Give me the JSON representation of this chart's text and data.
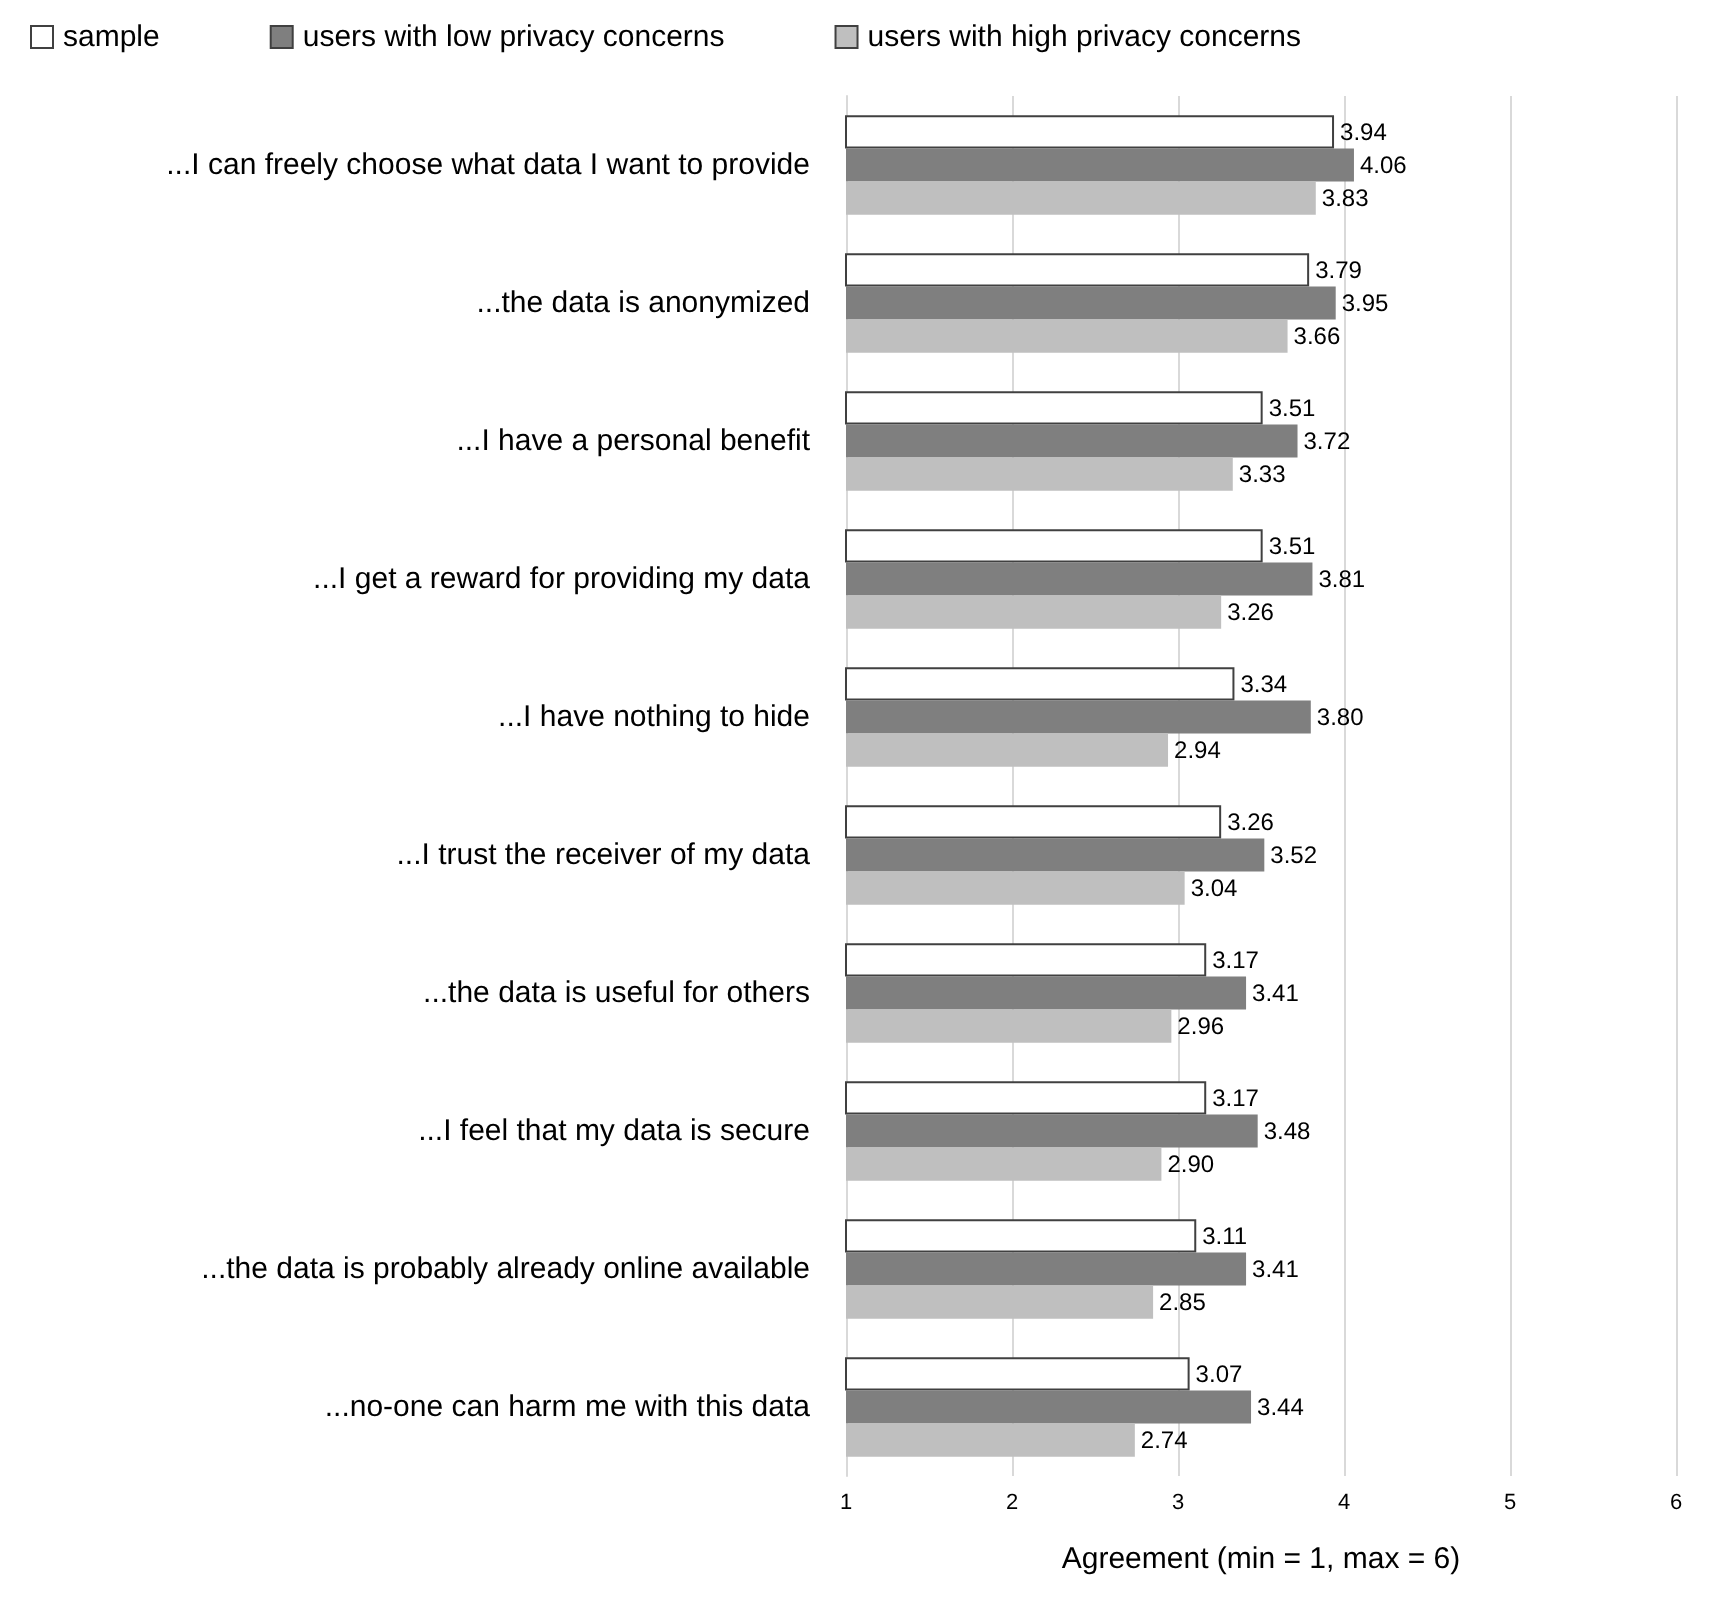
{
  "chart_data": {
    "type": "bar",
    "orientation": "horizontal",
    "xlabel": "Agreement (min = 1, max = 6)",
    "categories": [
      "...I can freely choose what data I want to provide",
      "...the data is anonymized",
      "...I have a personal benefit",
      "...I get a reward for providing my data",
      "...I have nothing to hide",
      "...I trust the receiver of my data",
      "...the data is useful for others",
      "...I feel that my data is secure",
      "...the data is probably already online available",
      "...no-one can harm me with this data"
    ],
    "series": [
      {
        "name": "sample",
        "color": "#ffffff",
        "values": [
          3.94,
          3.79,
          3.51,
          3.51,
          3.34,
          3.26,
          3.17,
          3.17,
          3.11,
          3.07
        ],
        "value_labels": [
          "3.94",
          "3.79",
          "3.51",
          "3.51",
          "3.34",
          "3.26",
          "3.17",
          "3.17",
          "3.11",
          "3.07"
        ]
      },
      {
        "name": "users with low privacy concerns",
        "color": "#7f7f7f",
        "values": [
          4.06,
          3.95,
          3.72,
          3.81,
          3.8,
          3.52,
          3.41,
          3.48,
          3.41,
          3.44
        ],
        "value_labels": [
          "4.06",
          "3.95",
          "3.72",
          "3.81",
          "3.80",
          "3.52",
          "3.41",
          "3.48",
          "3.41",
          "3.44"
        ]
      },
      {
        "name": "users with high privacy concerns",
        "color": "#bfbfbf",
        "values": [
          3.83,
          3.66,
          3.33,
          3.26,
          2.94,
          3.04,
          2.96,
          2.9,
          2.85,
          2.74
        ],
        "value_labels": [
          "3.83",
          "3.66",
          "3.33",
          "3.26",
          "2.94",
          "3.04",
          "2.96",
          "2.90",
          "2.85",
          "2.74"
        ]
      }
    ],
    "xlim": [
      1,
      6
    ],
    "xticks": [
      1,
      2,
      3,
      4,
      5,
      6
    ],
    "grid": "x",
    "legend": "top"
  }
}
